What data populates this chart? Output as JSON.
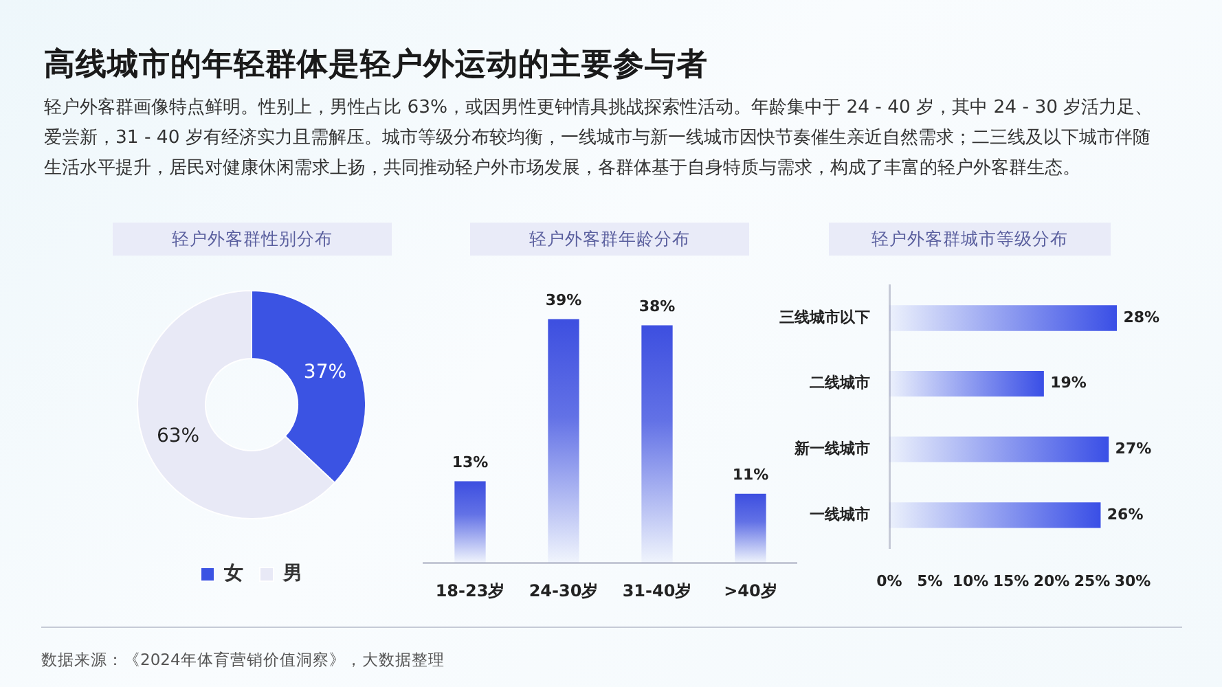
{
  "chart_data": [
    {
      "type": "other",
      "title": "高线城市的年轻群体是轻户外运动的主要参与者",
      "subtitle": "轻户外客群画像特点鲜明。性别上，男性占比 63%，或因男性更钟情具挑战探索性活动。年龄集中于 24 - 40 岁，其中 24 - 30 岁活力足、爱尝新，31 - 40 岁有经济实力且需解压。城市等级分布较均衡，一线城市与新一线城市因快节奏催生亲近自然需求；二三线及以下城市伴随生活水平提升，居民对健康休闲需求上扬，共同推动轻户外市场发展，各群体基于自身特质与需求，构成了丰富的轻户外客群生态。"
    },
    {
      "type": "donut",
      "title": "轻户外客群性别分布",
      "categories": [
        "女",
        "男"
      ],
      "values": [
        37,
        63
      ],
      "colors": [
        "#3b53e3",
        "#e8e9f6"
      ],
      "value_labels": [
        "37%",
        "63%"
      ],
      "legend": "bottom"
    },
    {
      "type": "bar",
      "title": "轻户外客群年龄分布",
      "categories": [
        "18-23岁",
        "24-30岁",
        "31-40岁",
        ">40岁"
      ],
      "values": [
        13,
        39,
        38,
        11
      ],
      "color": "#3d4fe0",
      "value_labels": [
        "13%",
        "39%",
        "38%",
        "11%"
      ],
      "tick_labels": "x"
    },
    {
      "type": "bar",
      "orientation": "horizontal",
      "title": "轻户外客群城市等级分布",
      "categories": [
        "三线城市以下",
        "二线城市",
        "新一线城市",
        "一线城市"
      ],
      "values": [
        28,
        19,
        27,
        26
      ],
      "color": "#3a4fe6",
      "value_labels": [
        "28%",
        "19%",
        "27%",
        "26%"
      ],
      "xlim": [
        0,
        30
      ],
      "xticks": [
        {
          "value": 0,
          "label": "0%"
        },
        {
          "value": 5,
          "label": "5%"
        },
        {
          "value": 10,
          "label": "10%"
        },
        {
          "value": 15,
          "label": "15%"
        },
        {
          "value": 20,
          "label": "20%"
        },
        {
          "value": 25,
          "label": "25%"
        },
        {
          "value": 30,
          "label": "30%"
        }
      ]
    },
    {
      "type": "other",
      "annotations": [
        "数据来源：《2024年体育营销价值洞察》，大数据整理"
      ]
    }
  ]
}
